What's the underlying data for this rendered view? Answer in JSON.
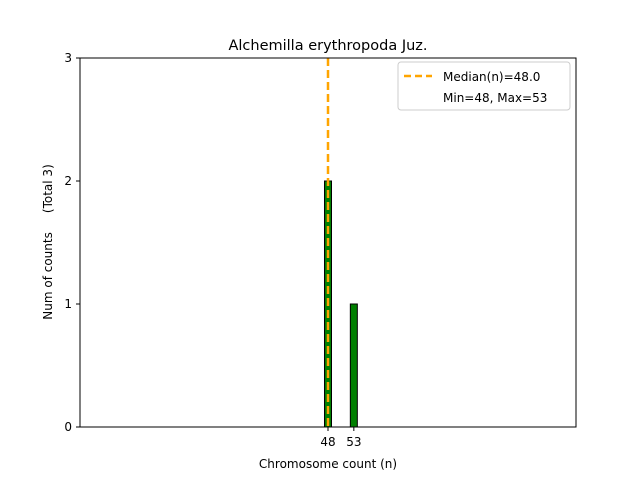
{
  "chart_data": {
    "type": "bar",
    "title": "Alchemilla erythropoda Juz.",
    "xlabel": "Chromosome count (n)",
    "ylabel": "Num of counts     (Total 3)",
    "xlim": [
      0,
      96
    ],
    "ylim": [
      0,
      3
    ],
    "y_ticks": [
      0,
      1,
      2,
      3
    ],
    "x_ticks": [
      48,
      53
    ],
    "bins": [
      {
        "x": 48,
        "count": 2
      },
      {
        "x": 53,
        "count": 1
      }
    ],
    "median": 48.0,
    "legend": {
      "position": "top-right",
      "entries": [
        "Median(n)=48.0",
        "Min=48, Max=53"
      ]
    },
    "grid": false,
    "colors": {
      "bar": "#007f00",
      "bar_edge": "#000000",
      "median": "#ffa500"
    }
  }
}
